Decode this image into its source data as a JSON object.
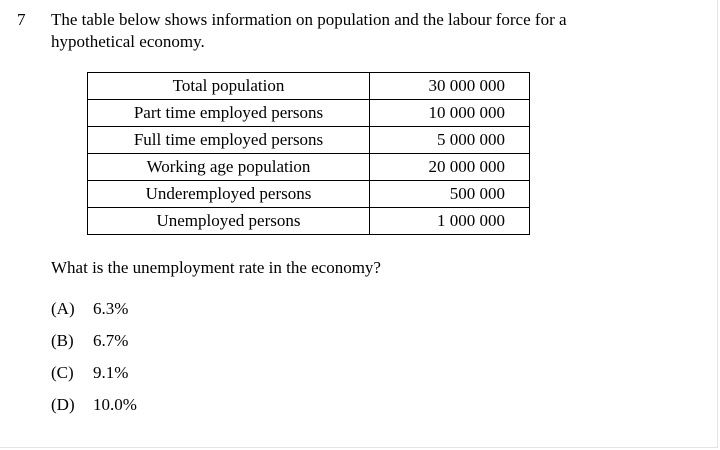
{
  "question_number": "7",
  "stem": "The table below shows information on population and the labour force for a hypothetical economy.",
  "table": {
    "rows": [
      {
        "label": "Total population",
        "value": "30 000 000"
      },
      {
        "label": "Part time employed persons",
        "value": "10 000 000"
      },
      {
        "label": "Full time employed persons",
        "value": "5 000 000"
      },
      {
        "label": "Working age population",
        "value": "20 000 000"
      },
      {
        "label": "Underemployed persons",
        "value": "500 000"
      },
      {
        "label": "Unemployed persons",
        "value": "1 000 000"
      }
    ]
  },
  "question": "What is the unemployment rate in the economy?",
  "options": [
    {
      "letter": "(A)",
      "text": "6.3%"
    },
    {
      "letter": "(B)",
      "text": "6.7%"
    },
    {
      "letter": "(C)",
      "text": "9.1%"
    },
    {
      "letter": "(D)",
      "text": "10.0%"
    }
  ]
}
